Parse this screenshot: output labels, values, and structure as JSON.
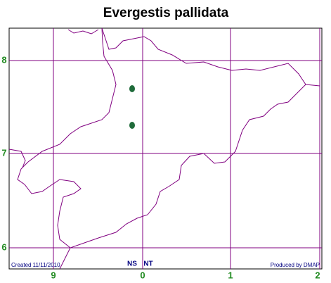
{
  "title": "Evergestis pallidata",
  "grid": {
    "y_labels": [
      "8",
      "7",
      "6"
    ],
    "x_labels": [
      "9",
      "0",
      "1",
      "2"
    ],
    "square_labels": [
      "NS",
      "NT"
    ]
  },
  "footer": {
    "created": "Created 11/11/2010",
    "producer": "Produced by DMAP"
  }
}
